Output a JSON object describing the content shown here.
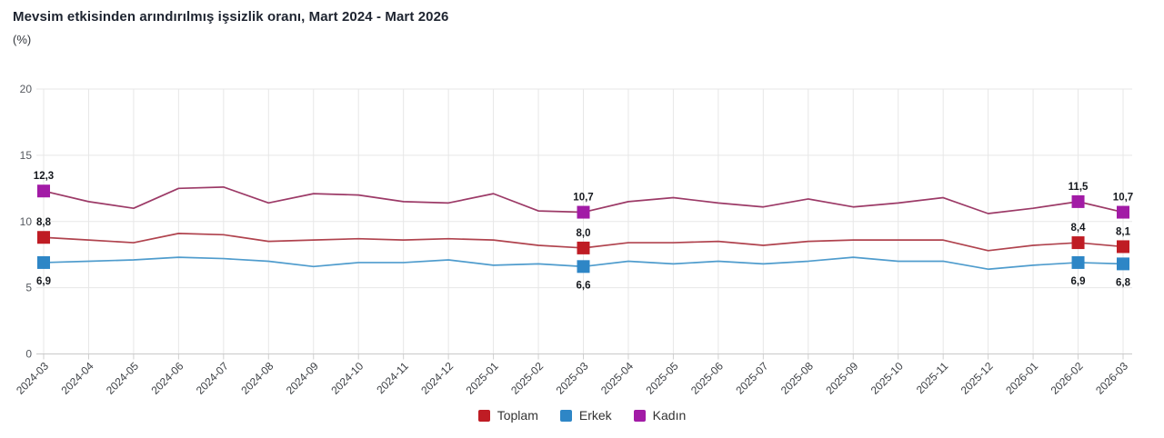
{
  "header": {
    "title": "Mevsim etkisinden arındırılmış işsizlik oranı, Mart 2024 - Mart 2026",
    "subtitle": "(%)"
  },
  "chart_data": {
    "type": "line",
    "title": "Mevsim etkisinden arındırılmış işsizlik oranı, Mart 2024 - Mart 2026",
    "unit_label": "(%)",
    "xlabel": "",
    "ylabel": "",
    "ylim": [
      0,
      20
    ],
    "yticks": [
      0,
      5,
      10,
      15,
      20
    ],
    "grid": true,
    "legend_position": "bottom",
    "decimal_separator": ",",
    "categories": [
      "2024-03",
      "2024-04",
      "2024-05",
      "2024-06",
      "2024-07",
      "2024-08",
      "2024-09",
      "2024-10",
      "2024-11",
      "2024-12",
      "2025-01",
      "2025-02",
      "2025-03",
      "2025-04",
      "2025-05",
      "2025-06",
      "2025-07",
      "2025-08",
      "2025-09",
      "2025-10",
      "2025-11",
      "2025-12",
      "2026-01",
      "2026-02",
      "2026-03"
    ],
    "highlighted_categories": [
      "2024-03",
      "2025-03",
      "2026-02",
      "2026-03"
    ],
    "series": [
      {
        "name": "Toplam",
        "line_color": "#b0434e",
        "marker_color": "#bf1c24",
        "label_position": "above",
        "values": [
          8.8,
          8.6,
          8.4,
          9.1,
          9.0,
          8.5,
          8.6,
          8.7,
          8.6,
          8.7,
          8.6,
          8.2,
          8.0,
          8.4,
          8.4,
          8.5,
          8.2,
          8.5,
          8.6,
          8.6,
          8.6,
          7.8,
          8.2,
          8.4,
          8.1
        ],
        "labeled_values": {
          "2024-03": "8,8",
          "2025-03": "8,0",
          "2026-02": "8,4",
          "2026-03": "8,1"
        }
      },
      {
        "name": "Erkek",
        "line_color": "#4f9ccd",
        "marker_color": "#2e86c6",
        "label_position": "below",
        "values": [
          6.9,
          7.0,
          7.1,
          7.3,
          7.2,
          7.0,
          6.6,
          6.9,
          6.9,
          7.1,
          6.7,
          6.8,
          6.6,
          7.0,
          6.8,
          7.0,
          6.8,
          7.0,
          7.3,
          7.0,
          7.0,
          6.4,
          6.7,
          6.9,
          6.8
        ],
        "labeled_values": {
          "2024-03": "6,9",
          "2025-03": "6,6",
          "2026-02": "6,9",
          "2026-03": "6,8"
        }
      },
      {
        "name": "Kadın",
        "line_color": "#9c3a67",
        "marker_color": "#a21ba6",
        "label_position": "above",
        "values": [
          12.3,
          11.5,
          11.0,
          12.5,
          12.6,
          11.4,
          12.1,
          12.0,
          11.5,
          11.4,
          12.1,
          10.8,
          10.7,
          11.5,
          11.8,
          11.4,
          11.1,
          11.7,
          11.1,
          11.4,
          11.8,
          10.6,
          11.0,
          11.5,
          10.7
        ],
        "labeled_values": {
          "2024-03": "12,3",
          "2025-03": "10,7",
          "2026-02": "11,5",
          "2026-03": "10,7"
        }
      }
    ]
  },
  "legend": {
    "items": [
      {
        "label": "Toplam",
        "color": "#bf1c24"
      },
      {
        "label": "Erkek",
        "color": "#2e86c6"
      },
      {
        "label": "Kadın",
        "color": "#a21ba6"
      }
    ]
  }
}
